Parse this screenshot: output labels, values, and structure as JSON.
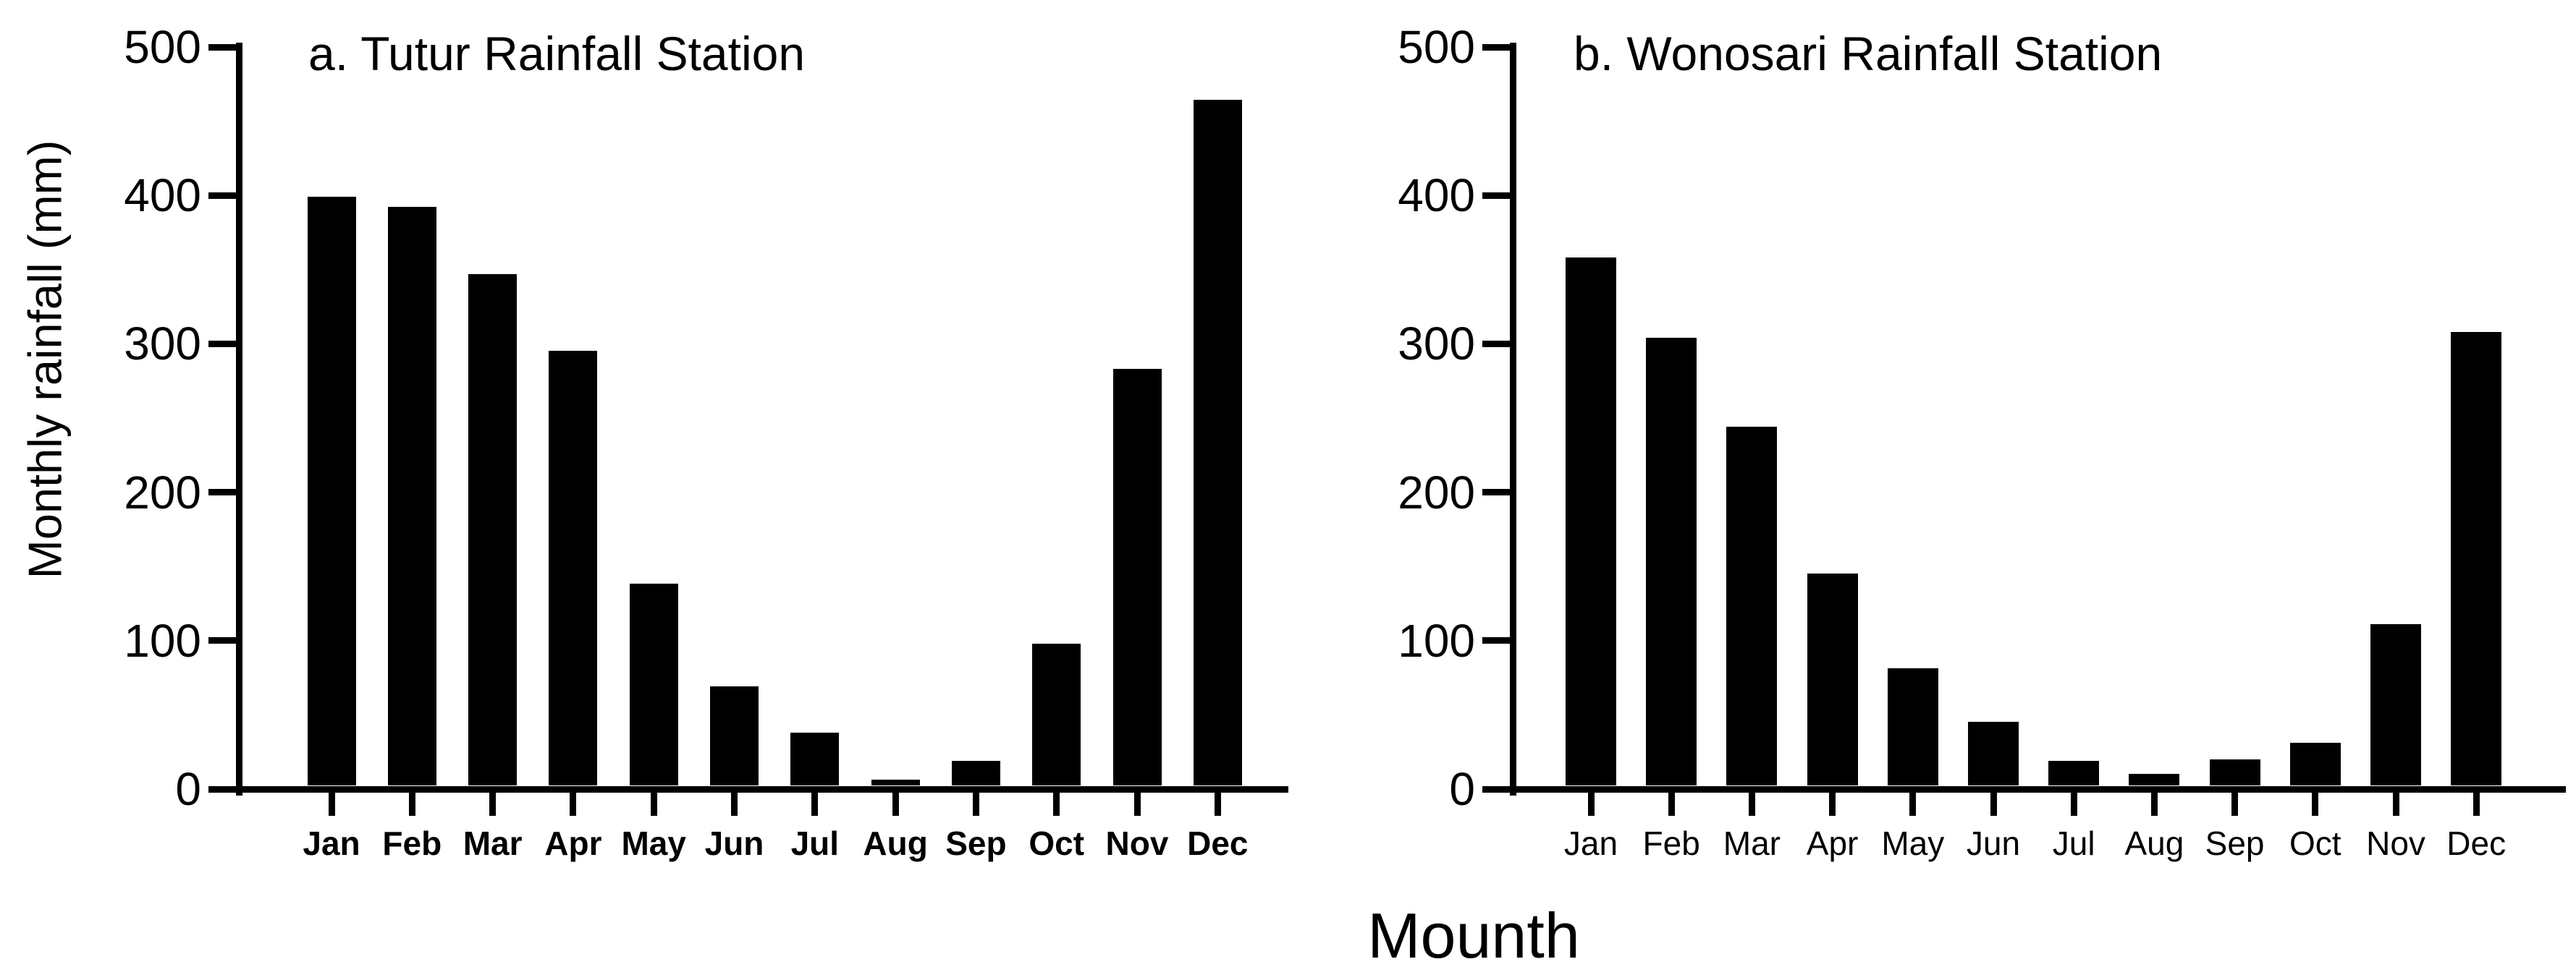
{
  "figure": {
    "y_axis_title": "Monthly rainfall (mm)",
    "x_axis_title": "Mounth"
  },
  "chart_data": [
    {
      "type": "bar",
      "title": "a. Tutur Rainfall Station",
      "categories": [
        "Jan",
        "Feb",
        "Mar",
        "Apr",
        "May",
        "Jun",
        "Jul",
        "Aug",
        "Sep",
        "Oct",
        "Nov",
        "Dec"
      ],
      "values": [
        397,
        390,
        345,
        293,
        136,
        67,
        36,
        4,
        17,
        96,
        281,
        462
      ],
      "xlabel": "Mounth",
      "ylabel": "Monthly rainfall (mm)",
      "ylim": [
        0,
        500
      ],
      "yticks": [
        0,
        100,
        200,
        300,
        400,
        500
      ],
      "bar_color": "#000000",
      "background_color": "#ffffff",
      "grid": "off",
      "legend": "none",
      "category_label_style": "bold"
    },
    {
      "type": "bar",
      "title": "b. Wonosari Rainfall Station",
      "categories": [
        "Jan",
        "Feb",
        "Mar",
        "Apr",
        "May",
        "Jun",
        "Jul",
        "Aug",
        "Sep",
        "Oct",
        "Nov",
        "Dec"
      ],
      "values": [
        356,
        302,
        242,
        143,
        79,
        43,
        17,
        8,
        18,
        29,
        109,
        306
      ],
      "xlabel": "Mounth",
      "ylabel": "Monthly rainfall (mm)",
      "ylim": [
        0,
        500
      ],
      "yticks": [
        0,
        100,
        200,
        300,
        400,
        500
      ],
      "bar_color": "#000000",
      "background_color": "#ffffff",
      "grid": "off",
      "legend": "none",
      "category_label_style": "regular"
    }
  ]
}
